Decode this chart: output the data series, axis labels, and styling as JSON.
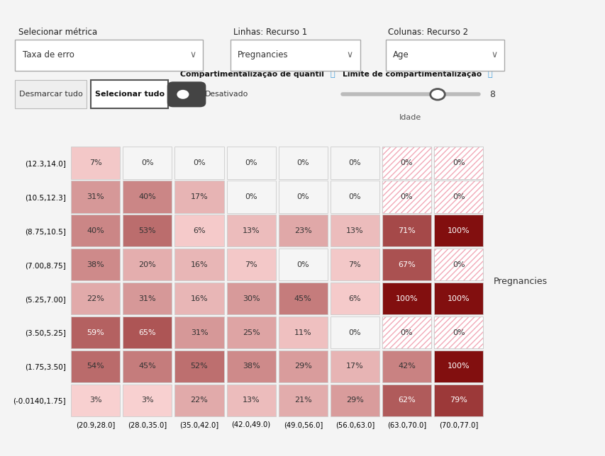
{
  "title": "Pregnancies",
  "row_labels": [
    "(12.3,14.0]",
    "(10.5,12.3]",
    "(8.75,10.5]",
    "(7.00,8.75]",
    "(5.25,7.00]",
    "(3.50,5.25]",
    "(1.75,3.50]",
    "(-0.0140,1.75]"
  ],
  "col_labels": [
    "(20.9,28.0]",
    "(28.0,35.0]",
    "(35.0,42.0]",
    "(42.0,49.0)",
    "(49.0,56.0]",
    "(56.0,63.0]",
    "(63.0,70.0]",
    "(70.0,77.0]"
  ],
  "values": [
    [
      7,
      0,
      0,
      0,
      0,
      0,
      0,
      0
    ],
    [
      31,
      40,
      17,
      0,
      0,
      0,
      0,
      0
    ],
    [
      40,
      53,
      6,
      13,
      23,
      13,
      71,
      100
    ],
    [
      38,
      20,
      16,
      7,
      0,
      7,
      67,
      0
    ],
    [
      22,
      31,
      16,
      30,
      45,
      6,
      100,
      100
    ],
    [
      59,
      65,
      31,
      25,
      11,
      0,
      0,
      0
    ],
    [
      54,
      45,
      52,
      38,
      29,
      17,
      42,
      100
    ],
    [
      3,
      3,
      22,
      13,
      21,
      29,
      62,
      79
    ]
  ],
  "hatched": [
    [
      false,
      false,
      false,
      false,
      false,
      false,
      true,
      true
    ],
    [
      false,
      false,
      false,
      false,
      false,
      false,
      true,
      true
    ],
    [
      false,
      false,
      false,
      false,
      false,
      false,
      false,
      false
    ],
    [
      false,
      false,
      false,
      false,
      false,
      false,
      false,
      true
    ],
    [
      false,
      false,
      false,
      false,
      false,
      false,
      false,
      false
    ],
    [
      false,
      false,
      false,
      false,
      false,
      false,
      true,
      true
    ],
    [
      false,
      false,
      false,
      false,
      false,
      false,
      false,
      false
    ],
    [
      false,
      false,
      false,
      false,
      false,
      false,
      false,
      false
    ]
  ],
  "ui_title": "Selecionar métrica",
  "ui_dropdown1": "Taxa de erro",
  "ui_label1": "Linhas: Recurso 1",
  "ui_dropdown2": "Pregnancies",
  "ui_label2": "Colunas: Recurso 2",
  "ui_dropdown3": "Age",
  "ui_btn1": "Desmarcar tudo",
  "ui_btn2": "Selecionar tudo",
  "ui_toggle_label": "Compartimentalização de quantil",
  "ui_toggle_val": "Desativado",
  "ui_slider_label": "Limite de compartimentalização",
  "ui_slider_val": "8",
  "ui_slider_sub": "Idade",
  "fig_width": 8.54,
  "fig_height": 6.44,
  "fig_dpi": 100
}
